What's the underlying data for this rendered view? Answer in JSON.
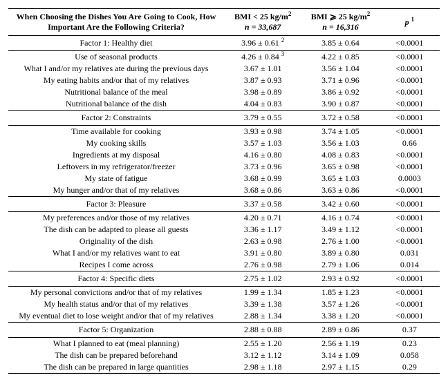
{
  "header": {
    "question": "When Choosing the Dishes You Are Going to Cook, How Important Are the Following Criteria?",
    "group1_line1": "BMI < 25 kg/m",
    "group1_line2_n": "n = 33,687",
    "group2_line1": "BMI ⩾ 25 kg/m",
    "group2_line2_n": "n = 16,316",
    "p_label": "p",
    "p_sup": "1",
    "sq": "2"
  },
  "factors": [
    {
      "name": "Factor 1: Healthy diet",
      "g1": "3.96 ± 0.61",
      "g1_sup": "2",
      "g2": "3.85 ± 0.64",
      "p": "<0.0001",
      "rows": [
        {
          "label": "Use of seasonal products",
          "g1": "4.26 ± 0.84",
          "g1_sup": "3",
          "g2": "4.22 ± 0.85",
          "p": "<0.0001"
        },
        {
          "label": "What I and/or my relatives ate during the previous days",
          "g1": "3.67 ± 1.01",
          "g2": "3.56 ± 1.04",
          "p": "<0.0001"
        },
        {
          "label": "My eating habits and/or that of my relatives",
          "g1": "3.87 ± 0.93",
          "g2": "3.71 ± 0.96",
          "p": "<0.0001"
        },
        {
          "label": "Nutritional balance of the meal",
          "g1": "3.98 ± 0.89",
          "g2": "3.86 ± 0.92",
          "p": "<0.0001"
        },
        {
          "label": "Nutritional balance of the dish",
          "g1": "4.04 ± 0.83",
          "g2": "3.90 ± 0.87",
          "p": "<0.0001"
        }
      ]
    },
    {
      "name": "Factor 2: Constraints",
      "g1": "3.79 ± 0.55",
      "g2": "3.72 ± 0.58",
      "p": "<0.0001",
      "rows": [
        {
          "label": "Time available for cooking",
          "g1": "3.93 ± 0.98",
          "g2": "3.74 ± 1.05",
          "p": "<0.0001"
        },
        {
          "label": "My cooking skills",
          "g1": "3.57 ± 1.03",
          "g2": "3.56 ± 1.03",
          "p": "0.66"
        },
        {
          "label": "Ingredients at my disposal",
          "g1": "4.16 ± 0.80",
          "g2": "4.08 ± 0.83",
          "p": "<0.0001"
        },
        {
          "label": "Leftovers in my refrigerator/freezer",
          "g1": "3.73 ± 0.96",
          "g2": "3.65 ± 0.98",
          "p": "<0.0001"
        },
        {
          "label": "My state of fatigue",
          "g1": "3.68 ± 0.99",
          "g2": "3.65 ± 1.03",
          "p": "0.0003"
        },
        {
          "label": "My hunger and/or that of my relatives",
          "g1": "3.68 ± 0.86",
          "g2": "3.63 ± 0.86",
          "p": "<0.0001"
        }
      ]
    },
    {
      "name": "Factor 3: Pleasure",
      "g1": "3.37 ± 0.58",
      "g2": "3.42 ± 0.60",
      "p": "<0.0001",
      "rows": [
        {
          "label": "My preferences and/or those of my relatives",
          "g1": "4.20 ± 0.71",
          "g2": "4.16 ± 0.74",
          "p": "<0.0001"
        },
        {
          "label": "The dish can be adapted to please all guests",
          "g1": "3.36 ± 1.17",
          "g2": "3.49 ± 1.12",
          "p": "<0.0001"
        },
        {
          "label": "Originality of the dish",
          "g1": "2.63 ± 0.98",
          "g2": "2.76 ± 1.00",
          "p": "<0.0001"
        },
        {
          "label": "What I and/or my relatives want to eat",
          "g1": "3.91 ± 0.80",
          "g2": "3.89 ± 0.80",
          "p": "0.031"
        },
        {
          "label": "Recipes I come across",
          "g1": "2.76 ± 0.98",
          "g2": "2.79 ± 1.06",
          "p": "0.014"
        }
      ]
    },
    {
      "name": "Factor 4: Specific diets",
      "g1": "2.75 ± 1.02",
      "g2": "2.93 ± 0.92",
      "p": "<0.0001",
      "rows": [
        {
          "label": "My personal convictions and/or that of my relatives",
          "g1": "1.99 ± 1.34",
          "g2": "1.85 ± 1.23",
          "p": "<0.0001"
        },
        {
          "label": "My health status and/or that of my relatives",
          "g1": "3.39 ± 1.38",
          "g2": "3.57 ± 1.26",
          "p": "<0.0001"
        },
        {
          "label": "My eventual diet to lose weight and/or that of my relatives",
          "g1": "2.88 ± 1.34",
          "g2": "3.38 ± 1.20",
          "p": "<0.0001"
        }
      ]
    },
    {
      "name": "Factor 5: Organization",
      "g1": "2.88 ± 0.88",
      "g2": "2.89 ± 0.86",
      "p": "0.37",
      "rows": [
        {
          "label": "What I planned to eat (meal planning)",
          "g1": "2.55 ± 1.20",
          "g2": "2.56 ± 1.19",
          "p": "0.23"
        },
        {
          "label": "The dish can be prepared beforehand",
          "g1": "3.12 ± 1.12",
          "g2": "3.14 ± 1.09",
          "p": "0.058"
        },
        {
          "label": "The dish can be prepared in large quantities",
          "g1": "2.98 ± 1.18",
          "g2": "2.97 ± 1.15",
          "p": "0.29"
        }
      ]
    }
  ]
}
